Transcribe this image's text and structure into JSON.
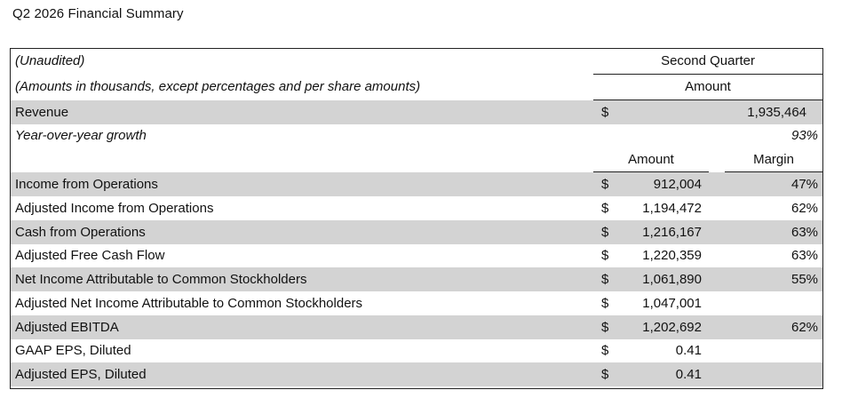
{
  "title": "Q2 2026 Financial Summary",
  "header": {
    "unaudited": "(Unaudited)",
    "units_note": "(Amounts in thousands, except percentages and per share amounts)",
    "period": "Second Quarter",
    "amount_top": "Amount",
    "amount_col": "Amount",
    "margin_col": "Margin"
  },
  "revenue": {
    "label": "Revenue",
    "currency": "$",
    "amount": "1,935,464"
  },
  "growth": {
    "label": "Year-over-year growth",
    "value": "93%"
  },
  "rows": [
    {
      "label": "Income from Operations",
      "currency": "$",
      "amount": "912,004",
      "margin": "47%"
    },
    {
      "label": "Adjusted Income from Operations",
      "currency": "$",
      "amount": "1,194,472",
      "margin": "62%"
    },
    {
      "label": "Cash from Operations",
      "currency": "$",
      "amount": "1,216,167",
      "margin": "63%"
    },
    {
      "label": "Adjusted Free Cash Flow",
      "currency": "$",
      "amount": "1,220,359",
      "margin": "63%"
    },
    {
      "label": "Net Income Attributable to Common Stockholders",
      "currency": "$",
      "amount": "1,061,890",
      "margin": "55%"
    },
    {
      "label": "Adjusted Net Income Attributable to Common Stockholders",
      "currency": "$",
      "amount": "1,047,001",
      "margin": ""
    },
    {
      "label": "Adjusted EBITDA",
      "currency": "$",
      "amount": "1,202,692",
      "margin": "62%"
    },
    {
      "label": "GAAP EPS, Diluted",
      "currency": "$",
      "amount": "0.41",
      "margin": ""
    },
    {
      "label": "Adjusted EPS, Diluted",
      "currency": "$",
      "amount": "0.41",
      "margin": ""
    }
  ]
}
